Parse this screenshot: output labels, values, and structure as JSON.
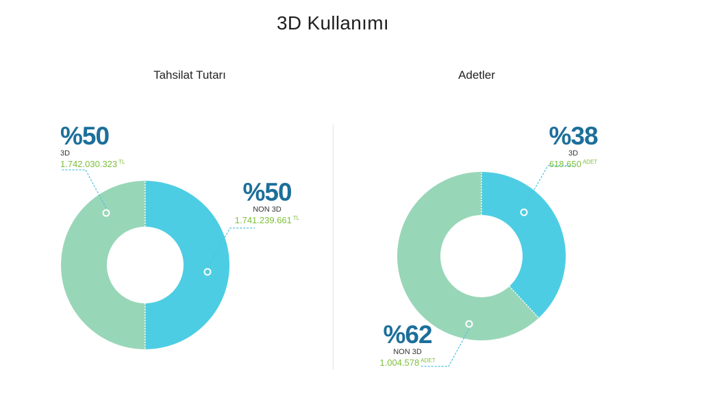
{
  "title": "3D Kullanımı",
  "colors": {
    "slice_3d": "#4dcde3",
    "slice_non3d": "#98d6b8",
    "pct": "#1d6f9a",
    "amount": "#7cbf3a",
    "leader": "#4dc0e0"
  },
  "chart_data": [
    {
      "type": "pie",
      "title": "Tahsilat Tutarı",
      "slices": [
        {
          "label": "3D",
          "percent_label": "%50",
          "value": 1742030323,
          "value_label": "1.742.030.323",
          "unit": "TL"
        },
        {
          "label": "NON 3D",
          "percent_label": "%50",
          "value": 1741239661,
          "value_label": "1.741.239.661",
          "unit": "TL"
        }
      ]
    },
    {
      "type": "pie",
      "title": "Adetler",
      "slices": [
        {
          "label": "3D",
          "percent_label": "%38",
          "value": 618650,
          "value_label": "618.650",
          "unit": "ADET"
        },
        {
          "label": "NON 3D",
          "percent_label": "%62",
          "value": 1004578,
          "value_label": "1.004.578",
          "unit": "ADET"
        }
      ]
    }
  ]
}
